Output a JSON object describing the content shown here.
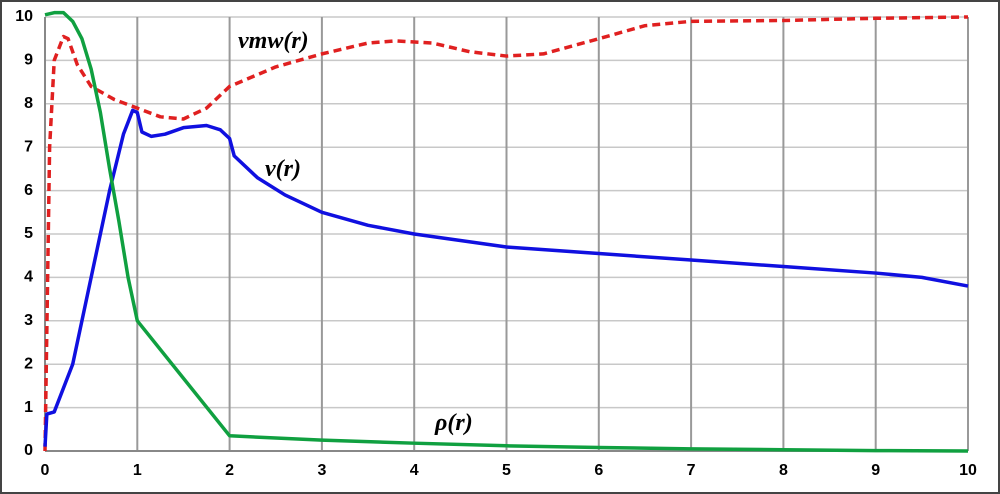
{
  "chart_data": {
    "type": "line",
    "xlim": [
      0,
      10
    ],
    "ylim": [
      0,
      10
    ],
    "xticks": [
      0,
      1,
      2,
      3,
      4,
      5,
      6,
      7,
      8,
      9,
      10
    ],
    "yticks": [
      0,
      1,
      2,
      3,
      4,
      5,
      6,
      7,
      8,
      9,
      10
    ],
    "grid": true,
    "series": [
      {
        "name": "vmw(r)",
        "color": "#e02020",
        "dashed": true,
        "x": [
          0,
          0.05,
          0.1,
          0.2,
          0.25,
          0.35,
          0.5,
          0.75,
          1,
          1.25,
          1.5,
          1.75,
          2,
          2.5,
          3,
          3.5,
          3.8,
          4.2,
          4.6,
          5,
          5.4,
          6,
          6.5,
          7,
          8,
          9,
          10
        ],
        "values": [
          0,
          7,
          9,
          9.55,
          9.5,
          8.9,
          8.4,
          8.1,
          7.9,
          7.7,
          7.65,
          7.9,
          8.4,
          8.85,
          9.15,
          9.4,
          9.45,
          9.4,
          9.2,
          9.1,
          9.15,
          9.5,
          9.8,
          9.9,
          9.92,
          9.97,
          10
        ]
      },
      {
        "name": "v(r)",
        "color": "#1010e0",
        "x": [
          0,
          0.02,
          0.1,
          0.3,
          0.5,
          0.7,
          0.85,
          0.95,
          1,
          1.05,
          1.15,
          1.3,
          1.5,
          1.75,
          1.9,
          2,
          2.05,
          2.3,
          2.6,
          3,
          3.5,
          4,
          5,
          6,
          7,
          8,
          9,
          9.5,
          10
        ],
        "values": [
          0.1,
          0.85,
          0.9,
          2,
          4,
          6,
          7.3,
          7.85,
          7.8,
          7.35,
          7.25,
          7.3,
          7.45,
          7.5,
          7.4,
          7.2,
          6.8,
          6.3,
          5.9,
          5.5,
          5.2,
          5,
          4.7,
          4.55,
          4.4,
          4.25,
          4.1,
          4,
          3.8
        ]
      },
      {
        "name": "ρ(r)",
        "color": "#10a040",
        "x": [
          0,
          0.1,
          0.2,
          0.3,
          0.4,
          0.5,
          0.6,
          0.7,
          0.8,
          0.9,
          1,
          2,
          3,
          4,
          5,
          6,
          7,
          8,
          9,
          10
        ],
        "values": [
          10.05,
          10.1,
          10.1,
          9.9,
          9.5,
          8.8,
          7.8,
          6.5,
          5.3,
          4,
          3,
          0.35,
          0.25,
          0.18,
          0.12,
          0.08,
          0.05,
          0.03,
          0.01,
          0
        ]
      }
    ]
  }
}
